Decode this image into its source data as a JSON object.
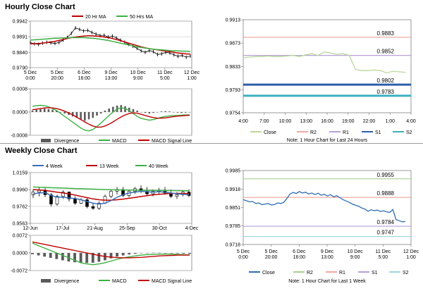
{
  "hourly": {
    "title": "Hourly Close Chart",
    "price_panel": {
      "legend": [
        {
          "label": "20 Hr MA",
          "color": "#c00000"
        },
        {
          "label": "50 Hrs MA",
          "color": "#3cb043"
        }
      ],
      "y_ticks": [
        0.9942,
        0.9891,
        0.984,
        0.979
      ],
      "y_tick_labels": [
        "0.9942",
        "0.9891",
        "0.9840",
        "0.9790"
      ],
      "ylim": [
        0.979,
        0.9942
      ],
      "x_labels": [
        "5 Dec\n0:00",
        "5 Dec\n20:00",
        "6 Dec\n16:00",
        "9 Dec\n13:00",
        "10 Dec\n9:00",
        "11 Dec\n5:00",
        "12 Dec\n1:00"
      ],
      "close": [
        0.9872,
        0.9868,
        0.9866,
        0.987,
        0.9873,
        0.9871,
        0.9869,
        0.9872,
        0.988,
        0.9889,
        0.9902,
        0.992,
        0.9915,
        0.991,
        0.9912,
        0.9905,
        0.99,
        0.9895,
        0.9896,
        0.989,
        0.9893,
        0.9887,
        0.988,
        0.9873,
        0.9866,
        0.986,
        0.9853,
        0.9845,
        0.984,
        0.9846,
        0.9842,
        0.9833,
        0.9835,
        0.984,
        0.9838,
        0.9832,
        0.9827,
        0.983,
        0.9824,
        0.9828
      ],
      "ma20": [
        0.9868,
        0.9868,
        0.9869,
        0.987,
        0.9872,
        0.9874,
        0.9876,
        0.9879,
        0.9882,
        0.9885,
        0.9888,
        0.989,
        0.9892,
        0.9893,
        0.9894,
        0.9894,
        0.9893,
        0.9892,
        0.989,
        0.9888,
        0.9885,
        0.9882,
        0.9878,
        0.9874,
        0.987,
        0.9866,
        0.9862,
        0.9858,
        0.9855,
        0.9852,
        0.985,
        0.9848,
        0.9846,
        0.9844,
        0.9842,
        0.984,
        0.9838,
        0.9836,
        0.9835,
        0.9834
      ],
      "ma50": [
        0.988,
        0.9881,
        0.9882,
        0.9883,
        0.9884,
        0.9885,
        0.9886,
        0.9886,
        0.9887,
        0.9887,
        0.9888,
        0.9888,
        0.9888,
        0.9888,
        0.9887,
        0.9886,
        0.9885,
        0.9883,
        0.9881,
        0.9879,
        0.9876,
        0.9873,
        0.987,
        0.9867,
        0.9864,
        0.9861,
        0.9858,
        0.9856,
        0.9854,
        0.9852,
        0.985,
        0.9849,
        0.9848,
        0.9847,
        0.9846,
        0.9845,
        0.9845,
        0.9844,
        0.9844,
        0.9843
      ]
    },
    "macd_panel": {
      "y_ticks": [
        0.0008,
        0.0,
        -0.0008
      ],
      "y_tick_labels": [
        "0.0008",
        "0.0000",
        "-0.0008"
      ],
      "ylim": [
        -0.0008,
        0.0008
      ],
      "divergence": [
        5e-05,
        8e-05,
        0.0001,
        0.00012,
        0.0001,
        8e-05,
        5e-05,
        0.0,
        -5e-05,
        -0.0001,
        -0.00015,
        -0.0002,
        -0.00025,
        -0.0003,
        -0.00025,
        -0.0002,
        -0.00012,
        -5e-05,
        5e-05,
        0.00012,
        0.00018,
        0.00022,
        0.00024,
        0.0002,
        0.00015,
        0.0001,
        5e-05,
        0.0,
        -3e-05,
        -5e-05,
        -3e-05,
        0.0,
        2e-05,
        3e-05,
        2e-05,
        0.0,
        -2e-05,
        -3e-05,
        -2e-05,
        0.0
      ],
      "macd": [
        0.0002,
        0.00022,
        0.00023,
        0.00022,
        0.00018,
        0.00012,
        5e-05,
        -5e-05,
        -0.00015,
        -0.00025,
        -0.00035,
        -0.00045,
        -0.00055,
        -0.00062,
        -0.00065,
        -0.0006,
        -0.0005,
        -0.00038,
        -0.00025,
        -0.00012,
        0.0,
        0.0001,
        0.00015,
        0.00012,
        5e-05,
        -5e-05,
        -0.00015,
        -0.00022,
        -0.00025,
        -0.00028,
        -0.00026,
        -0.00022,
        -0.00018,
        -0.00015,
        -0.00013,
        -0.00012,
        -0.00012,
        -0.00011,
        -0.0001,
        -0.0001
      ],
      "signal": [
        8e-05,
        0.0001,
        0.00012,
        0.00014,
        0.00015,
        0.00014,
        0.00012,
        8e-05,
        3e-05,
        -3e-05,
        -0.0001,
        -0.00018,
        -0.00026,
        -0.00034,
        -0.00042,
        -0.00048,
        -0.00052,
        -0.00052,
        -0.00048,
        -0.00042,
        -0.00034,
        -0.00025,
        -0.00017,
        -0.0001,
        -5e-05,
        -3e-05,
        -4e-05,
        -8e-05,
        -0.00012,
        -0.00016,
        -0.00019,
        -0.00021,
        -0.00021,
        -0.0002,
        -0.00018,
        -0.00016,
        -0.00014,
        -0.00013,
        -0.00012,
        -0.00011
      ],
      "legend": [
        {
          "label": "Divergence",
          "color": "#5a5a5a"
        },
        {
          "label": "MACD",
          "color": "#3cb043"
        },
        {
          "label": "MACD Signal Line",
          "color": "#c00000"
        }
      ]
    },
    "pivot_panel": {
      "y_ticks": [
        0.9913,
        0.9873,
        0.9833,
        0.9793,
        0.9754
      ],
      "y_tick_labels": [
        "0.9913",
        "0.9873",
        "0.9833",
        "0.9793",
        "0.9754"
      ],
      "ylim": [
        0.9754,
        0.9913
      ],
      "x_labels": [
        "4:00",
        "7:00",
        "10:00",
        "13:00",
        "16:00",
        "19:00",
        "22:00",
        "1:00",
        "4:00"
      ],
      "close": [
        0.9848,
        0.9849,
        0.985,
        0.985,
        0.9851,
        0.985,
        0.985,
        0.9851,
        0.9852,
        0.985,
        0.9853,
        0.9855,
        0.9852,
        0.9858,
        0.9856,
        0.9854,
        0.9855,
        0.9852,
        0.9828,
        0.9826,
        0.9826,
        0.9827,
        0.9826,
        0.9822,
        0.9825,
        0.9824,
        0.9823
      ],
      "levels": [
        {
          "name": "R2",
          "value": 0.9883,
          "label": "0.9883",
          "color": "#f0a8a0",
          "width": 1.2
        },
        {
          "name": "R1",
          "value": 0.9852,
          "label": "0.9852",
          "color": "#b8a0d8",
          "width": 1.2
        },
        {
          "name": "S1",
          "value": 0.9802,
          "label": "0.9802",
          "color": "#2e5fa8",
          "width": 3
        },
        {
          "name": "S2",
          "value": 0.9783,
          "label": "0.9783",
          "color": "#3bb0c0",
          "width": 3
        }
      ],
      "legend": [
        {
          "label": "Close",
          "color": "#b8d89a"
        },
        {
          "label": "R2",
          "color": "#f0a8a0"
        },
        {
          "label": "R1",
          "color": "#b8a0d8"
        },
        {
          "label": "S1",
          "color": "#2e5fa8"
        },
        {
          "label": "S2",
          "color": "#3bb0c0"
        }
      ],
      "note": "Note: 1 Hour Chart for Last 24 Hours"
    }
  },
  "weekly": {
    "title": "Weekly Close Chart",
    "price_panel": {
      "legend": [
        {
          "label": "4 Week",
          "color": "#3b6fb6"
        },
        {
          "label": "13 Week",
          "color": "#c00000"
        },
        {
          "label": "40 Week",
          "color": "#3cb043"
        }
      ],
      "y_ticks": [
        1.0159,
        0.996,
        0.9762,
        0.9563
      ],
      "y_tick_labels": [
        "1.0159",
        "0.9960",
        "0.9762",
        "0.9563"
      ],
      "ylim": [
        0.9563,
        1.0159
      ],
      "x_labels": [
        "12-Jun",
        "17-Jul",
        "21-Aug",
        "25-Sep",
        "30-Oct",
        "4-Dec"
      ],
      "ohlc": [
        [
          0.99,
          0.996,
          0.986,
          0.993
        ],
        [
          0.993,
          0.999,
          0.988,
          0.995
        ],
        [
          0.995,
          0.998,
          0.987,
          0.99
        ],
        [
          0.99,
          0.992,
          0.976,
          0.979
        ],
        [
          0.979,
          0.99,
          0.977,
          0.988
        ],
        [
          0.988,
          0.995,
          0.985,
          0.993
        ],
        [
          0.993,
          0.994,
          0.982,
          0.985
        ],
        [
          0.985,
          0.988,
          0.978,
          0.98
        ],
        [
          0.98,
          0.986,
          0.979,
          0.984
        ],
        [
          0.984,
          0.986,
          0.974,
          0.976
        ],
        [
          0.976,
          0.98,
          0.972,
          0.974
        ],
        [
          0.974,
          0.982,
          0.972,
          0.98
        ],
        [
          0.98,
          0.99,
          0.979,
          0.988
        ],
        [
          0.988,
          0.996,
          0.986,
          0.994
        ],
        [
          0.994,
          0.999,
          0.99,
          0.996
        ],
        [
          0.996,
          0.999,
          0.987,
          0.989
        ],
        [
          0.989,
          0.996,
          0.987,
          0.994
        ],
        [
          0.994,
          0.999,
          0.991,
          0.997
        ],
        [
          0.997,
          1.001,
          0.992,
          0.994
        ],
        [
          0.994,
          0.999,
          0.989,
          0.991
        ],
        [
          0.991,
          0.996,
          0.988,
          0.994
        ],
        [
          0.994,
          0.998,
          0.99,
          0.995
        ],
        [
          0.995,
          0.999,
          0.99,
          0.992
        ],
        [
          0.992,
          0.996,
          0.986,
          0.988
        ],
        [
          0.988,
          0.993,
          0.985,
          0.99
        ],
        [
          0.99,
          0.995,
          0.988,
          0.993
        ],
        [
          0.993,
          0.996,
          0.987,
          0.989
        ]
      ],
      "ma4": [
        0.991,
        0.992,
        0.9925,
        0.989,
        0.987,
        0.987,
        0.986,
        0.9855,
        0.984,
        0.982,
        0.98,
        0.979,
        0.98,
        0.983,
        0.987,
        0.99,
        0.992,
        0.993,
        0.994,
        0.9935,
        0.993,
        0.9935,
        0.993,
        0.992,
        0.991,
        0.9905,
        0.99
      ],
      "ma13": [
        0.996,
        0.9955,
        0.995,
        0.994,
        0.993,
        0.992,
        0.991,
        0.9895,
        0.988,
        0.9865,
        0.985,
        0.984,
        0.9835,
        0.9835,
        0.984,
        0.9848,
        0.9858,
        0.9868,
        0.9878,
        0.9888,
        0.9898,
        0.9905,
        0.991,
        0.9915,
        0.9915,
        0.9914,
        0.9912
      ],
      "ma40": [
        0.999,
        0.9987,
        0.9985,
        0.9982,
        0.998,
        0.9978,
        0.9975,
        0.9972,
        0.997,
        0.9968,
        0.9965,
        0.9962,
        0.996,
        0.9958,
        0.9956,
        0.9955,
        0.9954,
        0.9953,
        0.9952,
        0.9951,
        0.995,
        0.995,
        0.9949,
        0.9948,
        0.9947,
        0.9946,
        0.9945
      ]
    },
    "macd_panel": {
      "y_ticks": [
        0.0072,
        0.0,
        -0.0072
      ],
      "y_tick_labels": [
        "0.0072",
        "0.0000",
        "-0.0072"
      ],
      "ylim": [
        -0.0072,
        0.0072
      ],
      "divergence": [
        -0.0005,
        -0.001,
        -0.0015,
        -0.002,
        -0.0025,
        -0.003,
        -0.0035,
        -0.0038,
        -0.004,
        -0.0041,
        -0.004,
        -0.0036,
        -0.003,
        -0.0022,
        -0.0015,
        -0.001,
        -0.0006,
        -0.0003,
        -0.0001,
        0.0,
        0.0001,
        0.0001,
        0.0,
        -0.0001,
        -0.0002,
        -0.0003,
        -0.0004
      ],
      "macd": [
        0.004,
        0.003,
        0.002,
        0.001,
        0.0,
        -0.001,
        -0.002,
        -0.003,
        -0.004,
        -0.0045,
        -0.0048,
        -0.0045,
        -0.004,
        -0.0033,
        -0.0026,
        -0.002,
        -0.0016,
        -0.0012,
        -0.0009,
        -0.0007,
        -0.0006,
        -0.0005,
        -0.0005,
        -0.0005,
        -0.0006,
        -0.0007,
        -0.0008
      ],
      "signal": [
        0.0045,
        0.004,
        0.0035,
        0.003,
        0.0025,
        0.002,
        0.0015,
        0.001,
        0.0005,
        0.0,
        -0.0005,
        -0.001,
        -0.0014,
        -0.0017,
        -0.0019,
        -0.002,
        -0.002,
        -0.0019,
        -0.0018,
        -0.0016,
        -0.0014,
        -0.0012,
        -0.0011,
        -0.001,
        -0.0009,
        -0.0009,
        -0.0009
      ],
      "legend": [
        {
          "label": "Divergence",
          "color": "#5a5a5a"
        },
        {
          "label": "MACD",
          "color": "#3cb043"
        },
        {
          "label": "MACD Signal Line",
          "color": "#c00000"
        }
      ]
    },
    "pivot_panel": {
      "y_ticks": [
        0.9985,
        0.9918,
        0.9851,
        0.9785,
        0.9718
      ],
      "y_tick_labels": [
        "0.9985",
        "0.9918",
        "0.9851",
        "0.9785",
        "0.9718"
      ],
      "ylim": [
        0.9718,
        0.9985
      ],
      "x_labels": [
        "5 Dec\n0:00",
        "5 Dec\n20:00",
        "6 Dec\n16:00",
        "9 Dec\n13:00",
        "10 Dec\n9:00",
        "11 Dec\n5:00",
        "12 Dec\n1:00"
      ],
      "close": [
        0.988,
        0.9876,
        0.9872,
        0.9873,
        0.9866,
        0.9868,
        0.9862,
        0.9864,
        0.9866,
        0.9861,
        0.9862,
        0.9868,
        0.9866,
        0.987,
        0.9884,
        0.99,
        0.9906,
        0.9902,
        0.9909,
        0.9904,
        0.9907,
        0.99,
        0.9904,
        0.9898,
        0.9903,
        0.9896,
        0.9899,
        0.9893,
        0.9898,
        0.989,
        0.9894,
        0.9887,
        0.988,
        0.9875,
        0.987,
        0.9864,
        0.986,
        0.9856,
        0.985,
        0.9846,
        0.9838,
        0.9843,
        0.984,
        0.9842,
        0.9837,
        0.984,
        0.9836,
        0.9834,
        0.9844,
        0.9808,
        0.9804,
        0.98,
        0.9801
      ],
      "levels": [
        {
          "name": "R2",
          "value": 0.9955,
          "label": "0.9955",
          "color": "#a8d08d",
          "width": 1.2
        },
        {
          "name": "R1",
          "value": 0.9888,
          "label": "0.9888",
          "color": "#f0a8a0",
          "width": 1.2
        },
        {
          "name": "S1",
          "value": 0.9784,
          "label": "0.9784",
          "color": "#b8a0d8",
          "width": 1.2
        },
        {
          "name": "S2",
          "value": 0.9747,
          "label": "0.9747",
          "color": "#9fd7e0",
          "width": 1.2
        }
      ],
      "legend": [
        {
          "label": "Close",
          "color": "#2e6db3"
        },
        {
          "label": "R2",
          "color": "#a8d08d"
        },
        {
          "label": "R1",
          "color": "#f0a8a0"
        },
        {
          "label": "S1",
          "color": "#b8a0d8"
        },
        {
          "label": "S2",
          "color": "#9fd7e0"
        }
      ],
      "note": "Note: 1 Hour Chart for Last 1 Week"
    }
  }
}
